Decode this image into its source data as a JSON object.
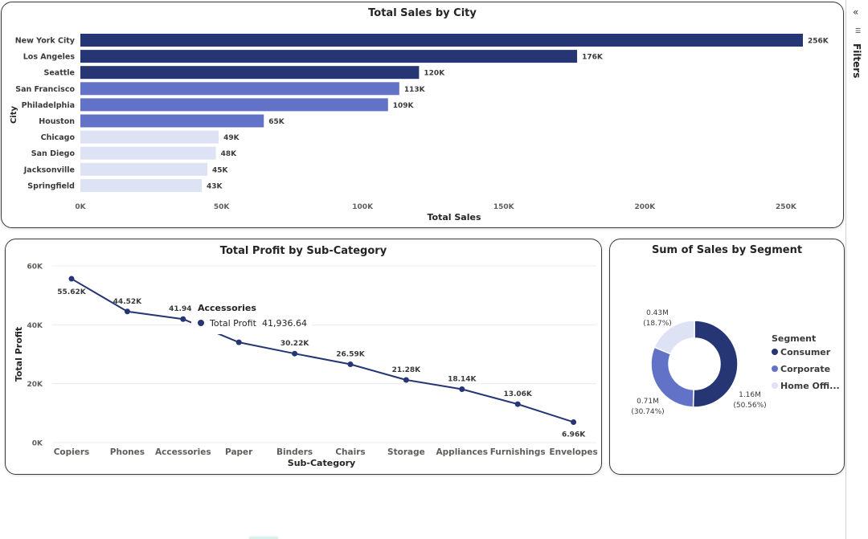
{
  "filters": {
    "label": "Filters",
    "collapse_icon": "«",
    "funnel_icon": "filter-icon"
  },
  "colors": {
    "dark": "#263574",
    "mid": "#6272c6",
    "light": "#dde3f4"
  },
  "tooltip": {
    "title": "Accessories",
    "label": "Total Profit",
    "value": "41,936.64"
  },
  "legend": {
    "title": "Segment",
    "items": [
      "Consumer",
      "Corporate",
      "Home Offi..."
    ]
  },
  "chart_data": [
    {
      "type": "bar",
      "orientation": "horizontal",
      "title": "Total Sales by City",
      "xlabel": "Total Sales",
      "ylabel": "City",
      "categories": [
        "New York City",
        "Los Angeles",
        "Seattle",
        "San Francisco",
        "Philadelphia",
        "Houston",
        "Chicago",
        "San Diego",
        "Jacksonville",
        "Springfield"
      ],
      "values": [
        256000,
        176000,
        120000,
        113000,
        109000,
        65000,
        49000,
        48000,
        45000,
        43000
      ],
      "data_labels": [
        "256K",
        "176K",
        "120K",
        "113K",
        "109K",
        "65K",
        "49K",
        "48K",
        "45K",
        "43K"
      ],
      "xticks": [
        "0K",
        "50K",
        "100K",
        "150K",
        "200K",
        "250K"
      ],
      "xlim": [
        0,
        262000
      ],
      "grid": false
    },
    {
      "type": "line",
      "title": "Total Profit by Sub-Category",
      "xlabel": "Sub-Category",
      "ylabel": "Total Profit",
      "categories": [
        "Copiers",
        "Phones",
        "Accessories",
        "Paper",
        "Binders",
        "Chairs",
        "Storage",
        "Appliances",
        "Furnishings",
        "Envelopes"
      ],
      "values": [
        55620,
        44520,
        41940,
        34050,
        30220,
        26590,
        21280,
        18140,
        13060,
        6960
      ],
      "data_labels": [
        "55.62K",
        "44.52K",
        "41.94K",
        "34.05K",
        "30.22K",
        "26.59K",
        "21.28K",
        "18.14K",
        "13.06K",
        "6.96K"
      ],
      "yticks": [
        "0K",
        "20K",
        "40K",
        "60K"
      ],
      "ylim": [
        0,
        60000
      ],
      "grid": true
    },
    {
      "type": "pie",
      "donut": true,
      "title": "Sum of Sales by Segment",
      "categories": [
        "Consumer",
        "Corporate",
        "Home Office"
      ],
      "values": [
        1.16,
        0.71,
        0.43
      ],
      "percent": [
        50.56,
        30.74,
        18.7
      ],
      "value_labels": [
        "1.16M",
        "0.71M",
        "0.43M"
      ],
      "percent_labels": [
        "(50.56%)",
        "(30.74%)",
        "(18.7%)"
      ],
      "legend_title": "Segment",
      "legend_position": "right"
    }
  ]
}
